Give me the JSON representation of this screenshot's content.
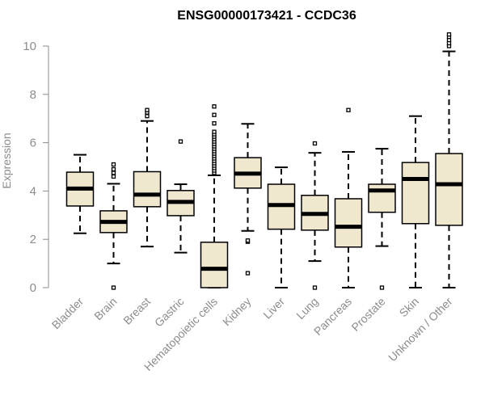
{
  "chart_data": {
    "type": "boxplot",
    "title": "ENSG00000173421 - CCDC36",
    "xlabel": "",
    "ylabel": "Expression",
    "ylim": [
      0,
      10
    ],
    "yticks": [
      0,
      2,
      4,
      6,
      8,
      10
    ],
    "grid": false,
    "legend": "none",
    "colors": {
      "box_fill": "#efe8cf",
      "box_stroke": "#000000",
      "median": "#000000",
      "axis": "#8c8c8c"
    },
    "categories": [
      "Bladder",
      "Brain",
      "Breast",
      "Gastric",
      "Hematopoietic cells",
      "Kidney",
      "Liver",
      "Lung",
      "Pancreas",
      "Prostate",
      "Skin",
      "Unknown / Other"
    ],
    "series": [
      {
        "category": "Bladder",
        "whisker_low": 2.25,
        "q1": 3.38,
        "median": 4.1,
        "q3": 4.78,
        "whisker_high": 5.5,
        "outliers": []
      },
      {
        "category": "Brain",
        "whisker_low": 1.0,
        "q1": 2.28,
        "median": 2.72,
        "q3": 3.18,
        "whisker_high": 4.3,
        "outliers": [
          0.0,
          4.6,
          4.75,
          4.9,
          5.1
        ]
      },
      {
        "category": "Breast",
        "whisker_low": 1.7,
        "q1": 3.35,
        "median": 3.85,
        "q3": 4.8,
        "whisker_high": 6.9,
        "outliers": [
          7.1,
          7.25,
          7.35
        ]
      },
      {
        "category": "Gastric",
        "whisker_low": 1.45,
        "q1": 2.98,
        "median": 3.55,
        "q3": 4.02,
        "whisker_high": 4.28,
        "outliers": [
          6.05
        ]
      },
      {
        "category": "Hematopoietic cells",
        "whisker_low": 0.0,
        "q1": 0.0,
        "median": 0.78,
        "q3": 1.88,
        "whisker_high": 4.65,
        "outliers": [
          4.75,
          4.85,
          4.95,
          5.05,
          5.15,
          5.25,
          5.35,
          5.45,
          5.55,
          5.65,
          5.75,
          5.85,
          5.95,
          6.05,
          6.15,
          6.25,
          6.35,
          6.45,
          6.8,
          7.15,
          7.5
        ]
      },
      {
        "category": "Kidney",
        "whisker_low": 2.35,
        "q1": 4.12,
        "median": 4.72,
        "q3": 5.38,
        "whisker_high": 6.78,
        "outliers": [
          0.6,
          1.9,
          1.95
        ]
      },
      {
        "category": "Liver",
        "whisker_low": 0.0,
        "q1": 2.42,
        "median": 3.42,
        "q3": 4.28,
        "whisker_high": 4.98,
        "outliers": []
      },
      {
        "category": "Lung",
        "whisker_low": 1.1,
        "q1": 2.38,
        "median": 3.05,
        "q3": 3.82,
        "whisker_high": 5.58,
        "outliers": [
          0.0,
          5.97
        ]
      },
      {
        "category": "Pancreas",
        "whisker_low": 0.0,
        "q1": 1.68,
        "median": 2.52,
        "q3": 3.68,
        "whisker_high": 5.62,
        "outliers": [
          7.35
        ]
      },
      {
        "category": "Prostate",
        "whisker_low": 1.72,
        "q1": 3.12,
        "median": 4.02,
        "q3": 4.28,
        "whisker_high": 5.75,
        "outliers": [
          0.0
        ]
      },
      {
        "category": "Skin",
        "whisker_low": 0.0,
        "q1": 2.65,
        "median": 4.5,
        "q3": 5.18,
        "whisker_high": 7.1,
        "outliers": []
      },
      {
        "category": "Unknown / Other",
        "whisker_low": 0.0,
        "q1": 2.58,
        "median": 4.28,
        "q3": 5.55,
        "whisker_high": 9.78,
        "outliers": [
          10.0,
          10.12,
          10.25,
          10.38,
          10.48
        ]
      }
    ]
  }
}
